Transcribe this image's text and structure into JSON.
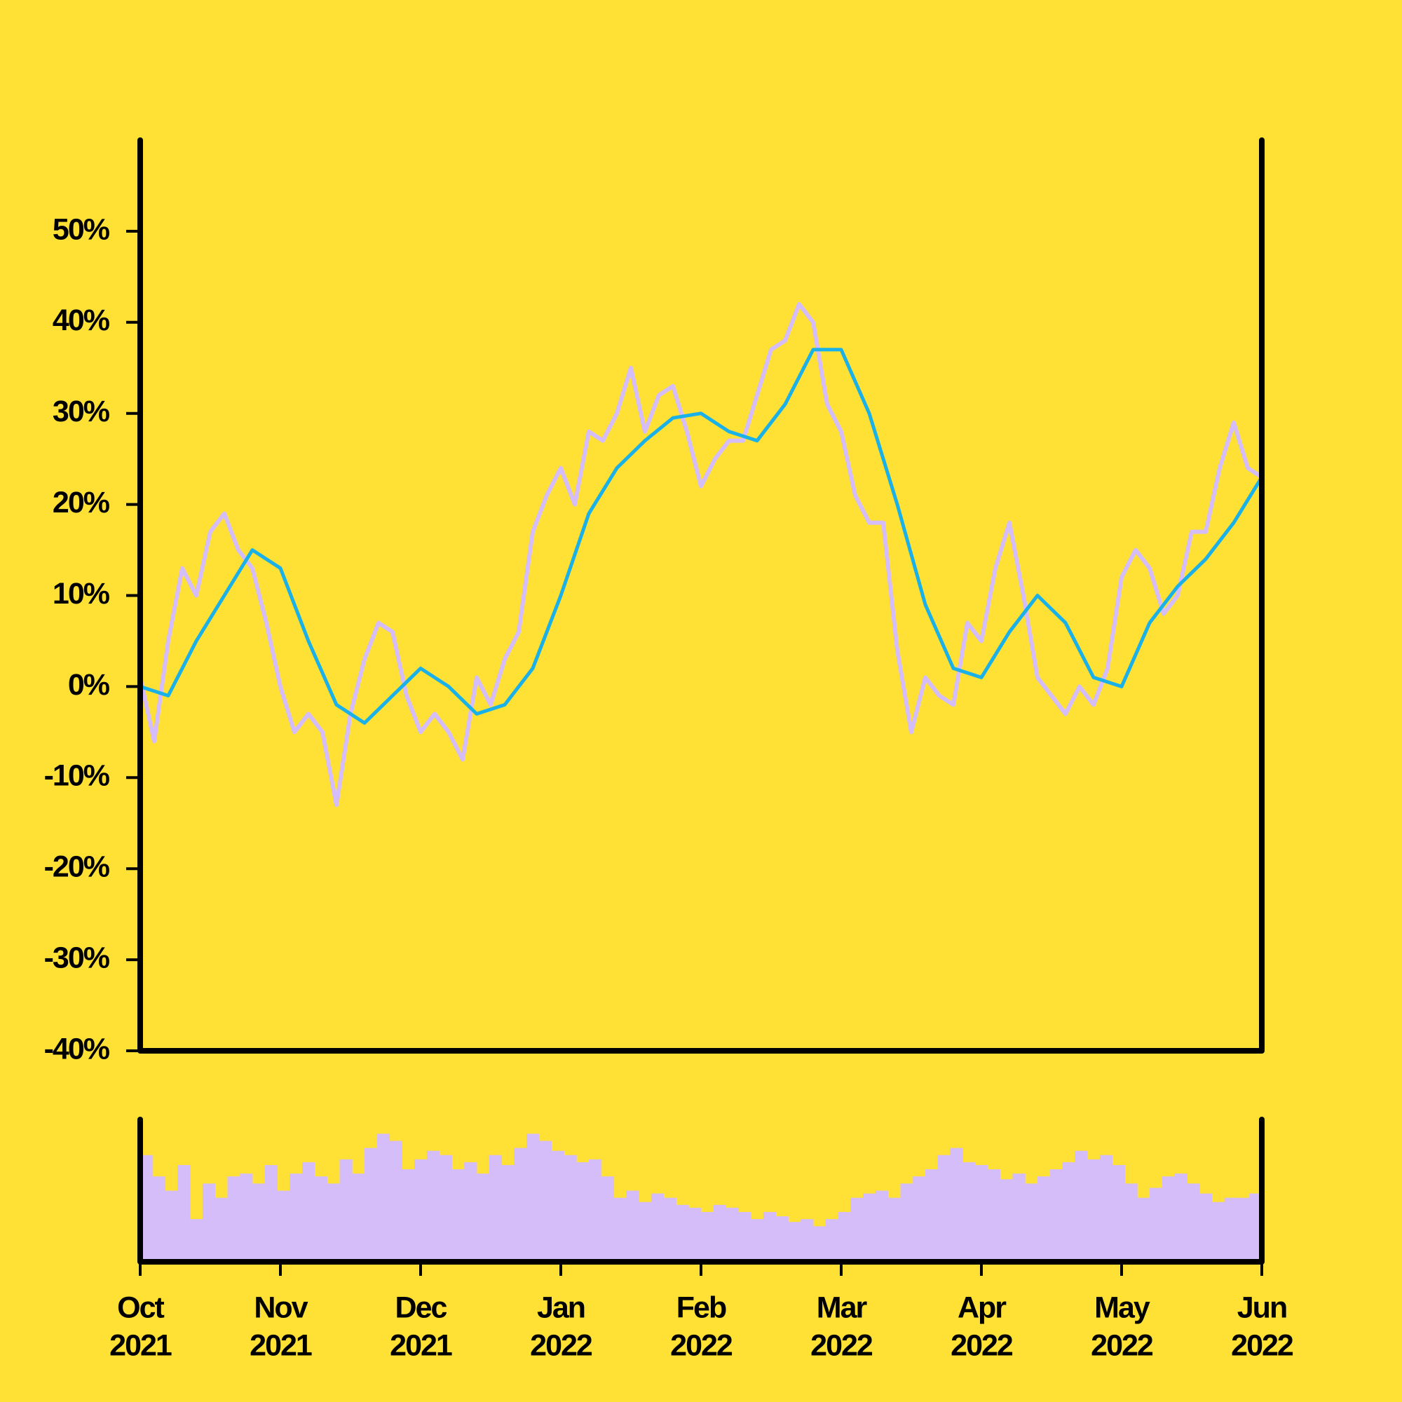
{
  "chart_data": [
    {
      "type": "line",
      "ylim": [
        -40,
        60
      ],
      "yticks": [
        {
          "value": -40,
          "label": "-40%"
        },
        {
          "value": -30,
          "label": "-30%"
        },
        {
          "value": -20,
          "label": "-20%"
        },
        {
          "value": -10,
          "label": "-10%"
        },
        {
          "value": 0,
          "label": "0%"
        },
        {
          "value": 10,
          "label": "10%"
        },
        {
          "value": 20,
          "label": "20%"
        },
        {
          "value": 30,
          "label": "30%"
        },
        {
          "value": 40,
          "label": "40%"
        },
        {
          "value": 50,
          "label": "50%"
        }
      ],
      "series": [
        {
          "color": "#d4bdf8",
          "width": 6,
          "values": [
            1,
            -6,
            5,
            13,
            10,
            17,
            19,
            15,
            13,
            7,
            0,
            -5,
            -3,
            -5,
            -13,
            -3,
            3,
            7,
            6,
            -1,
            -5,
            -3,
            -5,
            -8,
            1,
            -2,
            3,
            6,
            17,
            21,
            24,
            20,
            28,
            27,
            30,
            35,
            28,
            32,
            33,
            28,
            22,
            25,
            27,
            27,
            32,
            37,
            38,
            42,
            40,
            31,
            28,
            21,
            18,
            18,
            4,
            -5,
            1,
            -1,
            -2,
            7,
            5,
            13,
            18,
            10,
            1,
            -1,
            -3,
            0,
            -2,
            2,
            12,
            15,
            13,
            8,
            10,
            17,
            17,
            24,
            29,
            24,
            23
          ]
        },
        {
          "color": "#1ab0e8",
          "width": 5,
          "values": [
            0,
            -1,
            5,
            10,
            15,
            13,
            5,
            -2,
            -4,
            -1,
            2,
            0,
            -3,
            -2,
            2,
            10,
            19,
            24,
            27,
            29.5,
            30,
            28,
            27,
            31,
            37,
            37,
            30,
            20,
            9,
            2,
            1,
            6,
            10,
            7,
            1,
            0,
            7,
            11,
            14,
            18,
            23
          ]
        }
      ]
    },
    {
      "type": "bar",
      "color": "#d4bdf8",
      "ylim": [
        0,
        100
      ],
      "xticks": [
        {
          "month": "Oct",
          "year": "2021"
        },
        {
          "month": "Nov",
          "year": "2021"
        },
        {
          "month": "Dec",
          "year": "2021"
        },
        {
          "month": "Jan",
          "year": "2022"
        },
        {
          "month": "Feb",
          "year": "2022"
        },
        {
          "month": "Mar",
          "year": "2022"
        },
        {
          "month": "Apr",
          "year": "2022"
        },
        {
          "month": "May",
          "year": "2022"
        },
        {
          "month": "Jun",
          "year": "2022"
        }
      ],
      "values": [
        75,
        60,
        50,
        68,
        30,
        55,
        45,
        60,
        62,
        55,
        68,
        50,
        62,
        70,
        60,
        55,
        72,
        62,
        80,
        90,
        85,
        65,
        72,
        78,
        75,
        65,
        70,
        62,
        75,
        68,
        80,
        90,
        85,
        78,
        75,
        70,
        72,
        60,
        45,
        50,
        42,
        48,
        45,
        40,
        38,
        35,
        40,
        38,
        35,
        30,
        35,
        32,
        28,
        30,
        25,
        30,
        35,
        45,
        48,
        50,
        45,
        55,
        60,
        65,
        75,
        80,
        70,
        68,
        65,
        58,
        62,
        55,
        60,
        65,
        70,
        78,
        72,
        75,
        68,
        55,
        45,
        52,
        60,
        62,
        55,
        48,
        42,
        45,
        45,
        48
      ]
    }
  ]
}
